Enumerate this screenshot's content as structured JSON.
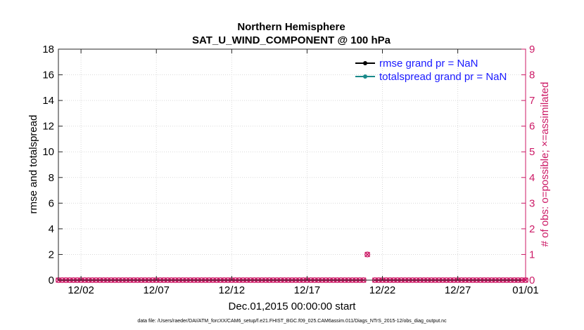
{
  "chart_data": {
    "type": "scatter",
    "title": "Northern Hemisphere",
    "subtitle": "SAT_U_WIND_COMPONENT @ 100 hPa",
    "xlabel": "Dec.01,2015 00:00:00 start",
    "ylabel_left": "rmse and totalspread",
    "ylabel_right": "# of obs: o=possible; ×=assimilated",
    "x_range_days": [
      0.5,
      31.5
    ],
    "x_ticks": [
      {
        "day": 2,
        "label": "12/02"
      },
      {
        "day": 7,
        "label": "12/07"
      },
      {
        "day": 12,
        "label": "12/12"
      },
      {
        "day": 17,
        "label": "12/17"
      },
      {
        "day": 22,
        "label": "12/22"
      },
      {
        "day": 27,
        "label": "12/27"
      },
      {
        "day": 32,
        "label": "01/01"
      }
    ],
    "ylim_left": [
      0,
      18
    ],
    "yticks_left": [
      "0",
      "2",
      "4",
      "6",
      "8",
      "10",
      "12",
      "14",
      "16",
      "18"
    ],
    "ylim_right": [
      0,
      9
    ],
    "yticks_right": [
      "0",
      "1",
      "2",
      "3",
      "4",
      "5",
      "6",
      "7",
      "8",
      "9"
    ],
    "grid": true,
    "legend_position": "top-right",
    "series": [
      {
        "name": "rmse grand pr = NaN",
        "color": "#000000",
        "values": []
      },
      {
        "name": "totalspread grand pr = NaN",
        "color": "#1a8a8a",
        "values": []
      }
    ],
    "obs_counts": {
      "color": "#cc1a66",
      "interval_days": 0.25,
      "start_day": 0.5,
      "end_day": 31.5,
      "default_possible": 0,
      "gap_days": [
        21.0,
        21.25
      ],
      "nonzero": [
        {
          "day": 21.0,
          "possible": 1,
          "assimilated": 1
        }
      ]
    }
  },
  "footnote": "data file: /Users/raeder/DAI/ATM_forcXX/CAM6_setup/f.e21.FHIST_BGC.f09_025.CAM6assim.011/Diags_NTrS_2015-12/obs_diag_output.nc"
}
